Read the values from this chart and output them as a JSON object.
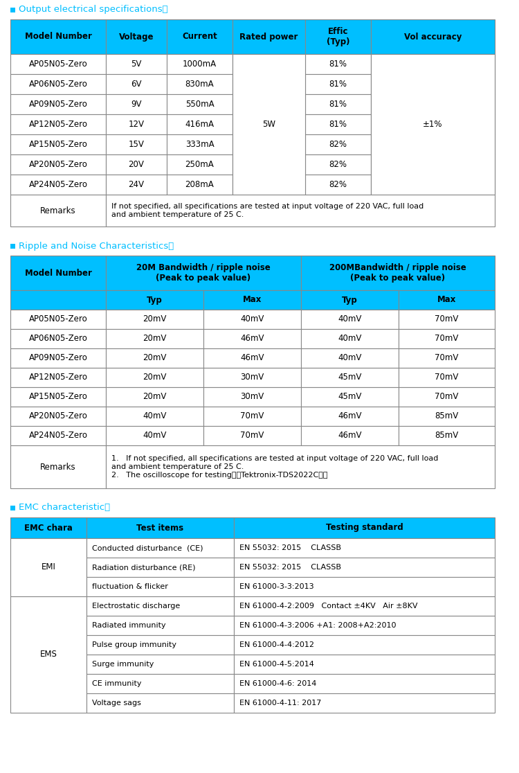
{
  "bg_color": "#ffffff",
  "header_bg": "#00bfff",
  "border_color": "#888888",
  "bullet_color": "#00bfff",
  "section_title_color": "#00bfff",
  "section1_title": "Output electrical specifications：",
  "table1_col_headers": [
    "Model Number",
    "Voltage",
    "Current",
    "Rated power",
    "Effic\n(Typ)",
    "Vol accuracy"
  ],
  "table1_rows": [
    [
      "AP05N05-Zero",
      "5V",
      "1000mA",
      "81%"
    ],
    [
      "AP06N05-Zero",
      "6V",
      "830mA",
      "81%"
    ],
    [
      "AP09N05-Zero",
      "9V",
      "550mA",
      "81%"
    ],
    [
      "AP12N05-Zero",
      "12V",
      "416mA",
      "81%"
    ],
    [
      "AP15N05-Zero",
      "15V",
      "333mA",
      "82%"
    ],
    [
      "AP20N05-Zero",
      "20V",
      "250mA",
      "82%"
    ],
    [
      "AP24N05-Zero",
      "24V",
      "208mA",
      "82%"
    ]
  ],
  "table1_rated_power": "5W",
  "table1_vol_accuracy": "±1%",
  "table1_remarks_text": "If not specified, all specifications are tested at input voltage of 220 VAC, full load\nand ambient temperature of 25 C.",
  "section2_title": "Ripple and Noise Characteristics：",
  "table2_rows": [
    [
      "AP05N05-Zero",
      "20mV",
      "40mV",
      "40mV",
      "70mV"
    ],
    [
      "AP06N05-Zero",
      "20mV",
      "46mV",
      "40mV",
      "70mV"
    ],
    [
      "AP09N05-Zero",
      "20mV",
      "46mV",
      "40mV",
      "70mV"
    ],
    [
      "AP12N05-Zero",
      "20mV",
      "30mV",
      "45mV",
      "70mV"
    ],
    [
      "AP15N05-Zero",
      "20mV",
      "30mV",
      "45mV",
      "70mV"
    ],
    [
      "AP20N05-Zero",
      "40mV",
      "70mV",
      "46mV",
      "85mV"
    ],
    [
      "AP24N05-Zero",
      "40mV",
      "70mV",
      "46mV",
      "85mV"
    ]
  ],
  "table2_remarks_text1": "If not specified, all specifications are tested at input voltage of 220 VAC, full load\nand ambient temperature of 25 C.",
  "table2_remarks_text2": "The oscilloscope for testing：＜Tektronix-TDS2022C＞。",
  "section3_title": "EMC characteristic：",
  "table3_headers": [
    "EMC chara",
    "Test items",
    "Testing standard"
  ],
  "table3_rows": [
    [
      "EMI",
      "Conducted disturbance  (CE)",
      "EN 55032: 2015    CLASSB"
    ],
    [
      "",
      "Radiation disturbance (RE)",
      "EN 55032: 2015    CLASSB"
    ],
    [
      "",
      "fluctuation & flicker",
      "EN 61000-3-3:2013"
    ],
    [
      "EMS",
      "Electrostatic discharge",
      "EN 61000-4-2:2009   Contact ±4KV   Air ±8KV"
    ],
    [
      "",
      "Radiated immunity",
      "EN 61000-4-3:2006 +A1: 2008+A2:2010"
    ],
    [
      "",
      "Pulse group immunity",
      "EN 61000-4-4:2012"
    ],
    [
      "",
      "Surge immunity",
      "EN 61000-4-5:2014"
    ],
    [
      "",
      "CE immunity",
      "EN 61000-4-6: 2014"
    ],
    [
      "",
      "Voltage sags",
      "EN 61000-4-11: 2017"
    ]
  ]
}
